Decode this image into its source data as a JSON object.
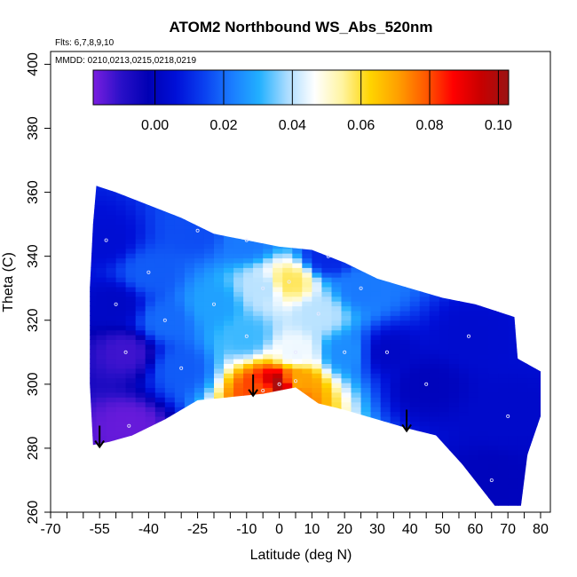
{
  "chart_data": {
    "type": "heatmap",
    "title": "ATOM2 Northbound WS_Abs_520nm",
    "annotations": [
      "Flts: 6,7,8,9,10",
      "MMDD: 0210,0213,0215,0218,0219"
    ],
    "xlabel": "Latitude (deg N)",
    "ylabel": "Theta (C)",
    "xlim": [
      -70,
      83
    ],
    "ylim": [
      260,
      404
    ],
    "x_ticks": [
      "-70",
      "-55",
      "-40",
      "-25",
      "-10",
      "0",
      "10",
      "20",
      "30",
      "40",
      "50",
      "60",
      "70",
      "80"
    ],
    "y_ticks": [
      "260",
      "280",
      "300",
      "320",
      "340",
      "360",
      "380",
      "400"
    ],
    "colorbar": {
      "range": [
        -0.018,
        0.103
      ],
      "ticks": [
        "0.00",
        "0.02",
        "0.04",
        "0.06",
        "0.08",
        "0.10"
      ],
      "colors": [
        "#7a1ee0",
        "#2a10c8",
        "#0000b4",
        "#0010d8",
        "#0a40f0",
        "#1a7cff",
        "#22b0ff",
        "#aadcff",
        "#ffffff",
        "#fff4a0",
        "#ffd400",
        "#ffa000",
        "#ff5a00",
        "#ff0000",
        "#c80000",
        "#9a1414"
      ]
    },
    "arrows": [
      {
        "lat": -55,
        "theta": 284
      },
      {
        "lat": -8,
        "theta": 300
      },
      {
        "lat": 39,
        "theta": 289
      }
    ],
    "region_boundary": {
      "top": [
        [
          -56,
          362
        ],
        [
          -50,
          360
        ],
        [
          -40,
          356
        ],
        [
          -30,
          352
        ],
        [
          -20,
          347
        ],
        [
          -10,
          345
        ],
        [
          0,
          343
        ],
        [
          10,
          342
        ],
        [
          20,
          338
        ],
        [
          30,
          333
        ],
        [
          40,
          330
        ],
        [
          50,
          327
        ],
        [
          60,
          325
        ],
        [
          66,
          323
        ],
        [
          72,
          321
        ],
        [
          73,
          308
        ],
        [
          80,
          304
        ],
        [
          80,
          290
        ],
        [
          76,
          278
        ],
        [
          74,
          262
        ]
      ],
      "bottom": [
        [
          66,
          262
        ],
        [
          56,
          275
        ],
        [
          48,
          284
        ],
        [
          40,
          286
        ],
        [
          30,
          289
        ],
        [
          20,
          292
        ],
        [
          12,
          294
        ],
        [
          5,
          299
        ],
        [
          -5,
          297
        ],
        [
          -15,
          296
        ],
        [
          -25,
          295
        ],
        [
          -35,
          289
        ],
        [
          -45,
          284
        ],
        [
          -52,
          282
        ],
        [
          -57,
          281
        ],
        [
          -58,
          300
        ],
        [
          -58,
          330
        ],
        [
          -57,
          350
        ]
      ]
    },
    "values": [
      {
        "lat": -53,
        "theta": 345,
        "value": 0.005
      },
      {
        "lat": -47,
        "theta": 310,
        "value": -0.012
      },
      {
        "lat": -46,
        "theta": 287,
        "value": -0.016
      },
      {
        "lat": -50,
        "theta": 325,
        "value": 0.002
      },
      {
        "lat": -40,
        "theta": 335,
        "value": 0.018
      },
      {
        "lat": -35,
        "theta": 320,
        "value": 0.02
      },
      {
        "lat": -30,
        "theta": 305,
        "value": 0.018
      },
      {
        "lat": -20,
        "theta": 325,
        "value": 0.028
      },
      {
        "lat": -10,
        "theta": 315,
        "value": 0.032
      },
      {
        "lat": -5,
        "theta": 330,
        "value": 0.04
      },
      {
        "lat": 3,
        "theta": 332,
        "value": 0.058
      },
      {
        "lat": 5,
        "theta": 310,
        "value": 0.045
      },
      {
        "lat": 0,
        "theta": 300,
        "value": 0.1
      },
      {
        "lat": 5,
        "theta": 301,
        "value": 0.07
      },
      {
        "lat": -5,
        "theta": 298,
        "value": 0.08
      },
      {
        "lat": 12,
        "theta": 322,
        "value": 0.04
      },
      {
        "lat": 20,
        "theta": 310,
        "value": 0.025
      },
      {
        "lat": 25,
        "theta": 330,
        "value": 0.022
      },
      {
        "lat": 33,
        "theta": 310,
        "value": 0.002
      },
      {
        "lat": 45,
        "theta": 300,
        "value": 0.0
      },
      {
        "lat": 58,
        "theta": 315,
        "value": 0.004
      },
      {
        "lat": 70,
        "theta": 290,
        "value": 0.003
      },
      {
        "lat": 65,
        "theta": 270,
        "value": 0.0
      },
      {
        "lat": -25,
        "theta": 348,
        "value": 0.016
      },
      {
        "lat": -10,
        "theta": 345,
        "value": 0.022
      },
      {
        "lat": 15,
        "theta": 340,
        "value": 0.01
      }
    ]
  }
}
